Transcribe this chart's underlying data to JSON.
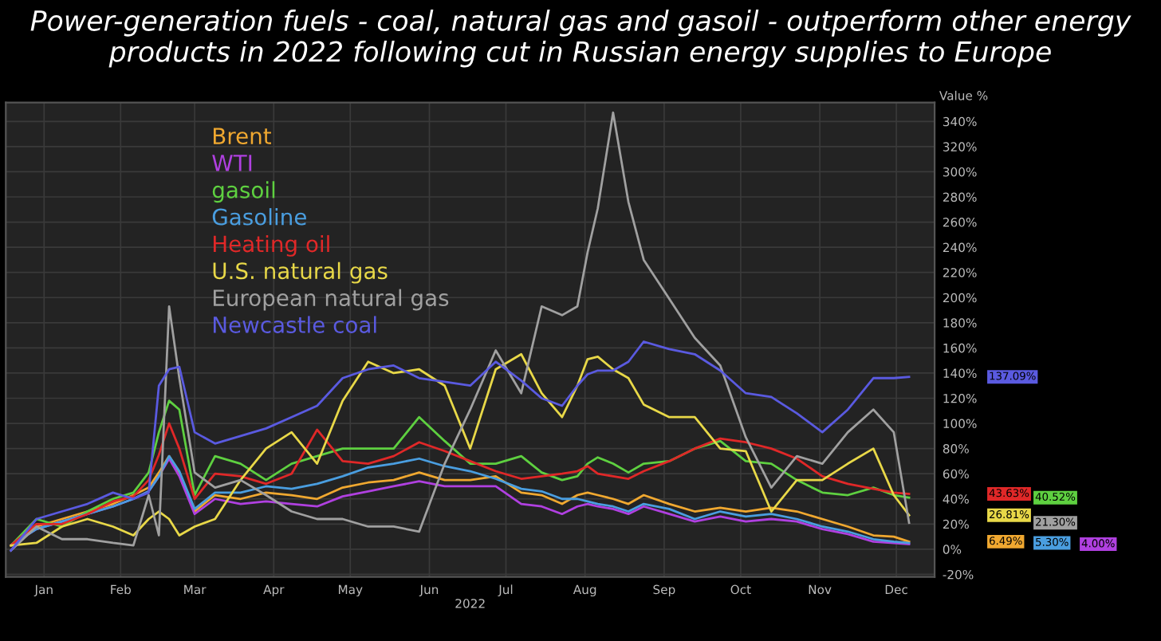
{
  "chart_data": {
    "type": "line",
    "title": "Power-generation fuels - coal, natural gas and gasoil - outperform other energy products in 2022 following cut in Russian energy supplies to Europe",
    "xlabel": "2022",
    "ylabel": "Value %",
    "x": [
      "2022-01-03",
      "2022-01-13",
      "2022-01-23",
      "2022-02-02",
      "2022-02-12",
      "2022-02-20",
      "2022-02-26",
      "2022-03-02",
      "2022-03-06",
      "2022-03-10",
      "2022-03-16",
      "2022-03-24",
      "2022-04-03",
      "2022-04-13",
      "2022-04-23",
      "2022-05-03",
      "2022-05-13",
      "2022-05-23",
      "2022-06-02",
      "2022-06-12",
      "2022-06-22",
      "2022-07-02",
      "2022-07-12",
      "2022-07-22",
      "2022-07-30",
      "2022-08-07",
      "2022-08-13",
      "2022-08-17",
      "2022-08-21",
      "2022-08-27",
      "2022-09-02",
      "2022-09-08",
      "2022-09-18",
      "2022-09-28",
      "2022-10-08",
      "2022-10-18",
      "2022-10-28",
      "2022-11-07",
      "2022-11-17",
      "2022-11-27",
      "2022-12-07",
      "2022-12-15",
      "2022-12-21"
    ],
    "series": [
      {
        "name": "Brent",
        "color": "#f0a830",
        "values": [
          3,
          18,
          24,
          30,
          36,
          43,
          49,
          61,
          74,
          61,
          30,
          43,
          40,
          45,
          43,
          40,
          49,
          53,
          55,
          61,
          55,
          55,
          58,
          45,
          43,
          36,
          43,
          45,
          43,
          40,
          36,
          43,
          36,
          30,
          33,
          30,
          33,
          30,
          24,
          18,
          11,
          10,
          6
        ]
      },
      {
        "name": "WTI",
        "color": "#b040e0",
        "values": [
          3,
          16,
          22,
          28,
          34,
          40,
          46,
          58,
          72,
          58,
          28,
          40,
          36,
          38,
          36,
          34,
          42,
          46,
          50,
          54,
          50,
          50,
          50,
          36,
          34,
          28,
          34,
          36,
          34,
          32,
          28,
          34,
          28,
          22,
          26,
          22,
          24,
          22,
          16,
          12,
          6,
          5,
          4
        ]
      },
      {
        "name": "gasoil",
        "color": "#5ed040",
        "values": [
          3,
          24,
          18,
          30,
          40,
          45,
          61,
          93,
          118,
          111,
          43,
          74,
          68,
          55,
          68,
          74,
          80,
          80,
          80,
          105,
          86,
          68,
          68,
          74,
          61,
          55,
          58,
          68,
          73,
          68,
          61,
          68,
          70,
          80,
          86,
          70,
          68,
          55,
          45,
          43,
          49,
          43,
          41
        ]
      },
      {
        "name": "Gasoline",
        "color": "#4a9ee0",
        "values": [
          3,
          16,
          22,
          28,
          34,
          40,
          46,
          58,
          74,
          62,
          32,
          45,
          45,
          50,
          48,
          52,
          58,
          65,
          68,
          72,
          66,
          62,
          56,
          48,
          46,
          40,
          40,
          38,
          36,
          34,
          30,
          36,
          32,
          24,
          30,
          26,
          28,
          24,
          18,
          14,
          8,
          6,
          5
        ]
      },
      {
        "name": "Heating oil",
        "color": "#e02828",
        "values": [
          3,
          20,
          20,
          28,
          38,
          42,
          55,
          75,
          100,
          80,
          40,
          60,
          58,
          52,
          60,
          95,
          70,
          68,
          74,
          85,
          78,
          70,
          62,
          56,
          58,
          60,
          62,
          66,
          60,
          58,
          56,
          62,
          70,
          80,
          88,
          85,
          80,
          72,
          58,
          52,
          48,
          45,
          44
        ]
      },
      {
        "name": "U.S. natural gas",
        "color": "#e8d848",
        "values": [
          3,
          5,
          18,
          24,
          18,
          11,
          24,
          30,
          24,
          11,
          18,
          24,
          55,
          80,
          93,
          68,
          118,
          149,
          140,
          143,
          130,
          80,
          143,
          155,
          124,
          105,
          130,
          151,
          153,
          143,
          136,
          115,
          105,
          105,
          80,
          78,
          30,
          55,
          55,
          68,
          80,
          43,
          27
        ]
      },
      {
        "name": "European natural gas",
        "color": "#a0a0a0",
        "values": [
          -1,
          18,
          8,
          8,
          5,
          3,
          43,
          11,
          193,
          136,
          61,
          49,
          55,
          43,
          30,
          24,
          24,
          18,
          18,
          14,
          68,
          111,
          158,
          124,
          193,
          186,
          193,
          236,
          271,
          347,
          276,
          230,
          199,
          168,
          146,
          89,
          49,
          74,
          68,
          93,
          111,
          93,
          21
        ]
      },
      {
        "name": "Newcastle coal",
        "color": "#5a5ae0",
        "values": [
          -1,
          24,
          30,
          36,
          45,
          40,
          45,
          130,
          143,
          145,
          93,
          84,
          90,
          96,
          105,
          114,
          136,
          143,
          146,
          136,
          133,
          130,
          149,
          134,
          120,
          114,
          130,
          139,
          142,
          142,
          149,
          165,
          159,
          155,
          142,
          124,
          121,
          108,
          93,
          111,
          136,
          136,
          137
        ]
      }
    ],
    "xlim": [
      "2022-01-01",
      "2022-12-31"
    ],
    "xticks": [
      {
        "value": "2022-01-16",
        "label": "Jan"
      },
      {
        "value": "2022-02-15",
        "label": "Feb"
      },
      {
        "value": "2022-03-16",
        "label": "Mar"
      },
      {
        "value": "2022-04-16",
        "label": "Apr"
      },
      {
        "value": "2022-05-16",
        "label": "May"
      },
      {
        "value": "2022-06-16",
        "label": "Jun"
      },
      {
        "value": "2022-07-16",
        "label": "Jul"
      },
      {
        "value": "2022-08-16",
        "label": "Aug"
      },
      {
        "value": "2022-09-16",
        "label": "Sep"
      },
      {
        "value": "2022-10-16",
        "label": "Oct"
      },
      {
        "value": "2022-11-16",
        "label": "Nov"
      },
      {
        "value": "2022-12-16",
        "label": "Dec"
      }
    ],
    "ylim": [
      -22,
      355
    ],
    "yticks": [
      {
        "value": -20,
        "label": "-20%"
      },
      {
        "value": 0,
        "label": "0%"
      },
      {
        "value": 20,
        "label": "20%"
      },
      {
        "value": 40,
        "label": "40%"
      },
      {
        "value": 60,
        "label": "60%"
      },
      {
        "value": 80,
        "label": "80%"
      },
      {
        "value": 100,
        "label": "100%"
      },
      {
        "value": 120,
        "label": "120%"
      },
      {
        "value": 140,
        "label": "140%"
      },
      {
        "value": 160,
        "label": "160%"
      },
      {
        "value": 180,
        "label": "180%"
      },
      {
        "value": 200,
        "label": "200%"
      },
      {
        "value": 220,
        "label": "220%"
      },
      {
        "value": 240,
        "label": "240%"
      },
      {
        "value": 260,
        "label": "260%"
      },
      {
        "value": 280,
        "label": "280%"
      },
      {
        "value": 300,
        "label": "300%"
      },
      {
        "value": 320,
        "label": "320%"
      },
      {
        "value": 340,
        "label": "340%"
      }
    ],
    "annotations": [
      "6.49%",
      "4.00%",
      "40.52%",
      "5.30%",
      "43.63%",
      "26.81%",
      "21.30%",
      "137.09%"
    ],
    "grid": true,
    "legend": "top left",
    "marker": "none",
    "line_style": "solid"
  }
}
